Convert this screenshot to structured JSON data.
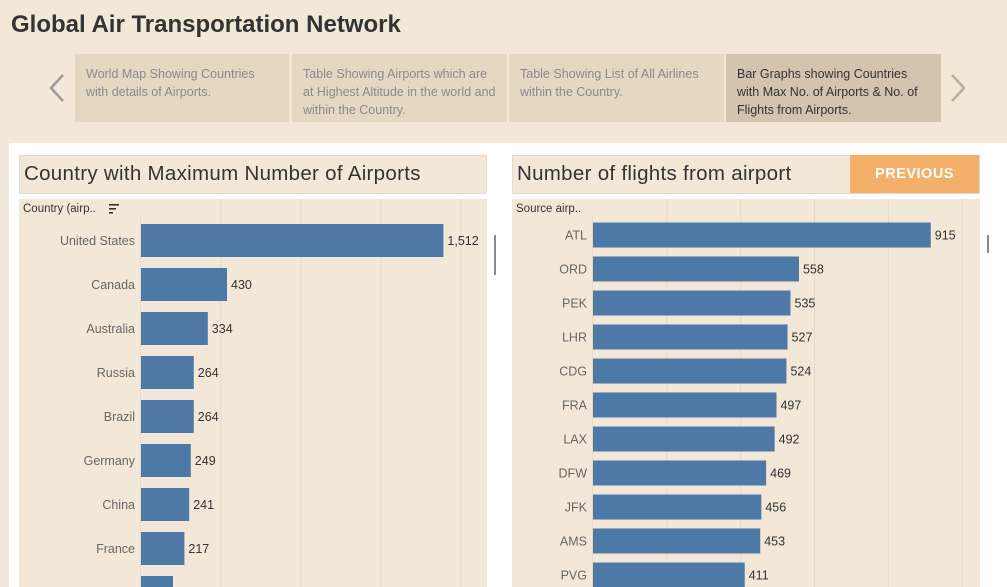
{
  "title": "Global Air Transportation Network",
  "story": {
    "tabs": [
      {
        "label": "World Map Showing Countries with details of Airports.",
        "active": false
      },
      {
        "label": "Table Showing Airports which are at Highest Altitude in the world and within the Country.",
        "active": false
      },
      {
        "label": "Table Showing List of All Airlines within the Country.",
        "active": false
      },
      {
        "label": "Bar Graphs showing Countries with Max No. of Airports & No. of Flights from Airports.",
        "active": true
      }
    ],
    "prev_icon": "chevron-left-icon",
    "next_icon": "chevron-right-icon"
  },
  "left_panel": {
    "title": "Country with Maximum Number of Airports",
    "column_header": "Country (airp..",
    "sort_icon": "sort-descending-icon"
  },
  "right_panel": {
    "title": "Number of flights from airport",
    "column_header": "Source airp..",
    "previous_button": "PREVIOUS"
  },
  "colors": {
    "bar": "#4e79a7",
    "background": "#f3e8d8",
    "button": "#f4b06a"
  },
  "chart_data": [
    {
      "type": "bar",
      "orientation": "horizontal",
      "title": "Country with Maximum Number of Airports",
      "categories": [
        "United States",
        "Canada",
        "Australia",
        "Russia",
        "Brazil",
        "Germany",
        "China",
        "France"
      ],
      "values": [
        1512,
        430,
        334,
        264,
        264,
        249,
        241,
        217
      ],
      "value_labels": [
        "1,512",
        "430",
        "334",
        "264",
        "264",
        "249",
        "241",
        "217"
      ],
      "xlim": [
        0,
        1800
      ],
      "partially_visible_next_value": 160
    },
    {
      "type": "bar",
      "orientation": "horizontal",
      "title": "Number of flights from airport",
      "categories": [
        "ATL",
        "ORD",
        "PEK",
        "LHR",
        "CDG",
        "FRA",
        "LAX",
        "DFW",
        "JFK",
        "AMS",
        "PVG"
      ],
      "values": [
        915,
        558,
        535,
        527,
        524,
        497,
        492,
        469,
        456,
        453,
        411
      ],
      "value_labels": [
        "915",
        "558",
        "535",
        "527",
        "524",
        "497",
        "492",
        "469",
        "456",
        "453",
        "411"
      ],
      "xlim": [
        0,
        1200
      ]
    }
  ]
}
